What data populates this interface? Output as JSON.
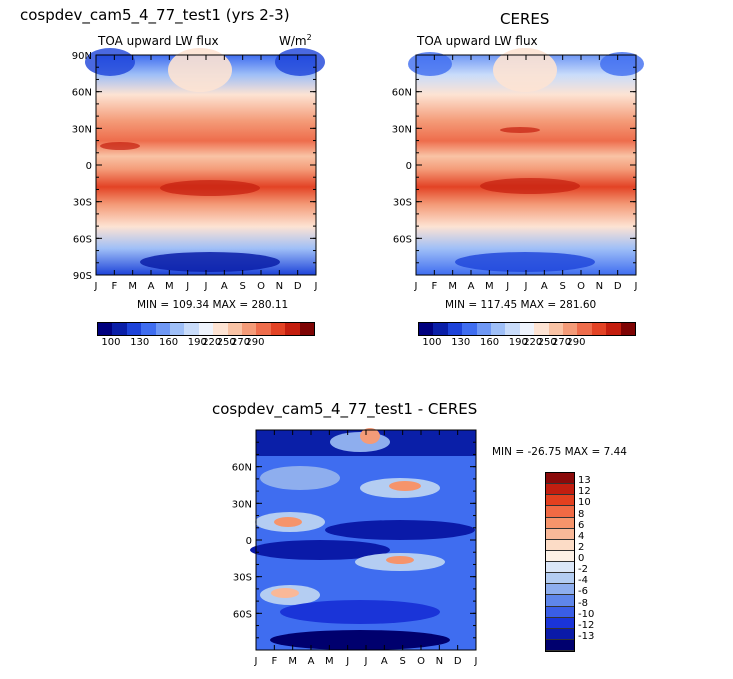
{
  "chart_data": [
    {
      "type": "heatmap",
      "title": "cospdev_cam5_4_77_test1 (yrs 2-3)",
      "subtitle": "TOA upward LW flux",
      "units": "W/m",
      "units_superscript": "2",
      "stats": "MIN = 109.34  MAX = 280.11",
      "x_ticks": [
        "J",
        "F",
        "M",
        "A",
        "M",
        "J",
        "J",
        "A",
        "S",
        "O",
        "N",
        "D",
        "J"
      ],
      "y_ticks": [
        "90N",
        "60N",
        "30N",
        "0",
        "30S",
        "60S",
        "90S"
      ],
      "ylim": [
        -90,
        90
      ],
      "colorbar_labels": [
        "100",
        "130",
        "160",
        "190",
        "220",
        "250",
        "270",
        "290"
      ],
      "colorbar_colors": [
        "#00007e",
        "#0a1fa8",
        "#1d43d9",
        "#3f6df0",
        "#6f98f5",
        "#9fbff7",
        "#c9dcfa",
        "#eef3fc",
        "#fde3d3",
        "#f9c3a5",
        "#f49b78",
        "#ee6d4c",
        "#e34325",
        "#c41e0e",
        "#7e0404"
      ]
    },
    {
      "type": "heatmap",
      "title": "CERES",
      "subtitle": "TOA upward LW flux",
      "stats": "MIN = 117.45  MAX = 281.60",
      "x_ticks": [
        "J",
        "F",
        "M",
        "A",
        "M",
        "J",
        "J",
        "A",
        "S",
        "O",
        "N",
        "D",
        "J"
      ],
      "y_ticks": [
        "60N",
        "30N",
        "0",
        "30S",
        "60S"
      ],
      "ylim": [
        -90,
        90
      ],
      "colorbar_labels": [
        "100",
        "130",
        "160",
        "190",
        "220",
        "250",
        "270",
        "290"
      ],
      "colorbar_colors": [
        "#00007e",
        "#0a1fa8",
        "#1d43d9",
        "#3f6df0",
        "#6f98f5",
        "#9fbff7",
        "#c9dcfa",
        "#eef3fc",
        "#fde3d3",
        "#f9c3a5",
        "#f49b78",
        "#ee6d4c",
        "#e34325",
        "#c41e0e",
        "#7e0404"
      ]
    },
    {
      "type": "heatmap",
      "title": "cospdev_cam5_4_77_test1 - CERES",
      "stats": "MIN = -26.75  MAX =    7.44",
      "x_ticks": [
        "J",
        "F",
        "M",
        "A",
        "M",
        "J",
        "J",
        "A",
        "S",
        "O",
        "N",
        "D",
        "J"
      ],
      "y_ticks": [
        "60N",
        "30N",
        "0",
        "30S",
        "60S"
      ],
      "ylim": [
        -90,
        90
      ],
      "colorbar_labels": [
        "13",
        "12",
        "10",
        "8",
        "6",
        "4",
        "2",
        "0",
        "-2",
        "-4",
        "-6",
        "-8",
        "-10",
        "-12",
        "-13"
      ],
      "colorbar_colors": [
        "#8a0a0a",
        "#c21e10",
        "#e3401f",
        "#f06a44",
        "#f6946b",
        "#f9b898",
        "#fcdcc6",
        "#fdf1e6",
        "#dbe7f8",
        "#b4cdf2",
        "#8eaeee",
        "#5f86ea",
        "#3a5ee6",
        "#1a34d8",
        "#0a1aa8",
        "#00006e"
      ]
    }
  ]
}
